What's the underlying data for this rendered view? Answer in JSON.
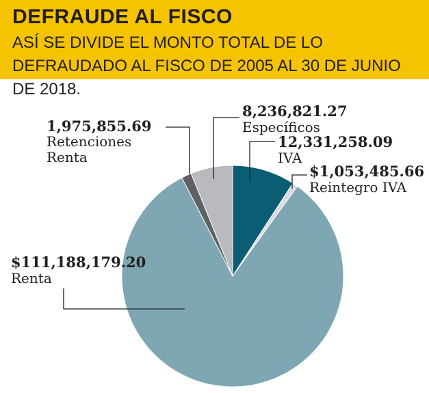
{
  "header": {
    "title": "DEFRAUDE AL FISCO",
    "subtitle": "ASÍ SE DIVIDE EL MONTO TOTAL DE LO DEFRAUDADO AL FISCO DE 2005 AL 30 DE JUNIO DE 2018."
  },
  "chart_data": {
    "type": "pie",
    "start_angle_deg": 0,
    "direction": "clockwise",
    "slices": [
      {
        "name": "IVA",
        "value_label": "12,331,258.09",
        "value": 12331258.09,
        "color": "#0b5d73"
      },
      {
        "name": "Reintegro IVA",
        "value_label": "$1,053,485.66",
        "value": 1053485.66,
        "color": "#d9dcde"
      },
      {
        "name": "Renta",
        "value_label": "$111,188,179.20",
        "value": 111188179.2,
        "color": "#7fa7b3"
      },
      {
        "name": "Retenciones Renta",
        "value_label": "1,975,855.69",
        "value": 1975855.69,
        "color": "#5f6265"
      },
      {
        "name": "Específicos",
        "value_label": "8,236,821.27",
        "value": 8236821.27,
        "color": "#b8babd"
      }
    ]
  }
}
